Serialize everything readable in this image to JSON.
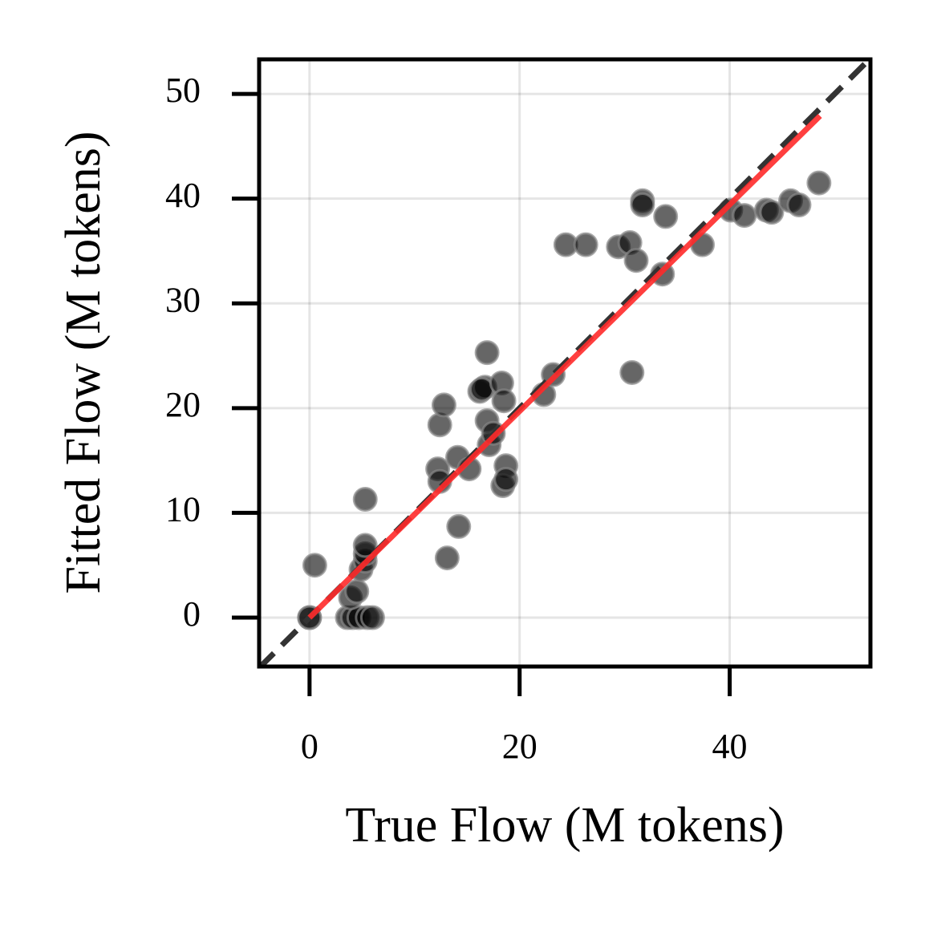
{
  "chart_data": {
    "type": "scatter",
    "xlabel": "True Flow (M tokens)",
    "ylabel": "Fitted Flow (M tokens)",
    "x": [
      0.5,
      0,
      0,
      3.6,
      4.1,
      4.7,
      5.5,
      6.0,
      3.9,
      4.5,
      4.9,
      5.3,
      5.3,
      5.3,
      5.3,
      12.4,
      12.8,
      12.2,
      12.4,
      14.1,
      15.2,
      13.1,
      14.2,
      16.2,
      16.7,
      16.4,
      16.9,
      16.9,
      17.1,
      17.5,
      18.3,
      18.5,
      18.7,
      18.4,
      18.7,
      22.3,
      23.2,
      24.4,
      26.3,
      29.4,
      30.5,
      31.1,
      33.6,
      31.7,
      31.7,
      33.9,
      37.4,
      30.7,
      40.1,
      41.4,
      43.5,
      44.0,
      45.8,
      46.6,
      48.5
    ],
    "y": [
      5.0,
      0,
      0,
      0,
      0,
      0,
      0,
      0,
      1.9,
      2.5,
      4.6,
      5.4,
      6.1,
      6.9,
      11.3,
      18.4,
      20.3,
      14.2,
      13.0,
      15.3,
      14.2,
      5.7,
      8.7,
      21.6,
      22.0,
      21.8,
      25.3,
      18.8,
      16.5,
      17.6,
      22.4,
      20.7,
      14.5,
      12.6,
      13.2,
      21.3,
      23.2,
      35.6,
      35.6,
      35.4,
      35.8,
      34.1,
      32.8,
      39.8,
      39.4,
      38.3,
      35.6,
      23.4,
      38.9,
      38.4,
      38.9,
      38.7,
      39.8,
      39.4,
      41.5
    ],
    "color": "#000000",
    "fit_line": {
      "x": [
        0,
        48.6
      ],
      "y": [
        0,
        47.9
      ],
      "color": "#ff2a2a"
    },
    "identity_line": true,
    "xlim": [
      -4.8,
      53.4
    ],
    "ylim": [
      -4.67,
      53.3
    ],
    "xticks": [
      0,
      20,
      40
    ],
    "yticks": [
      0,
      10,
      20,
      30,
      40,
      50
    ],
    "grid": true
  }
}
